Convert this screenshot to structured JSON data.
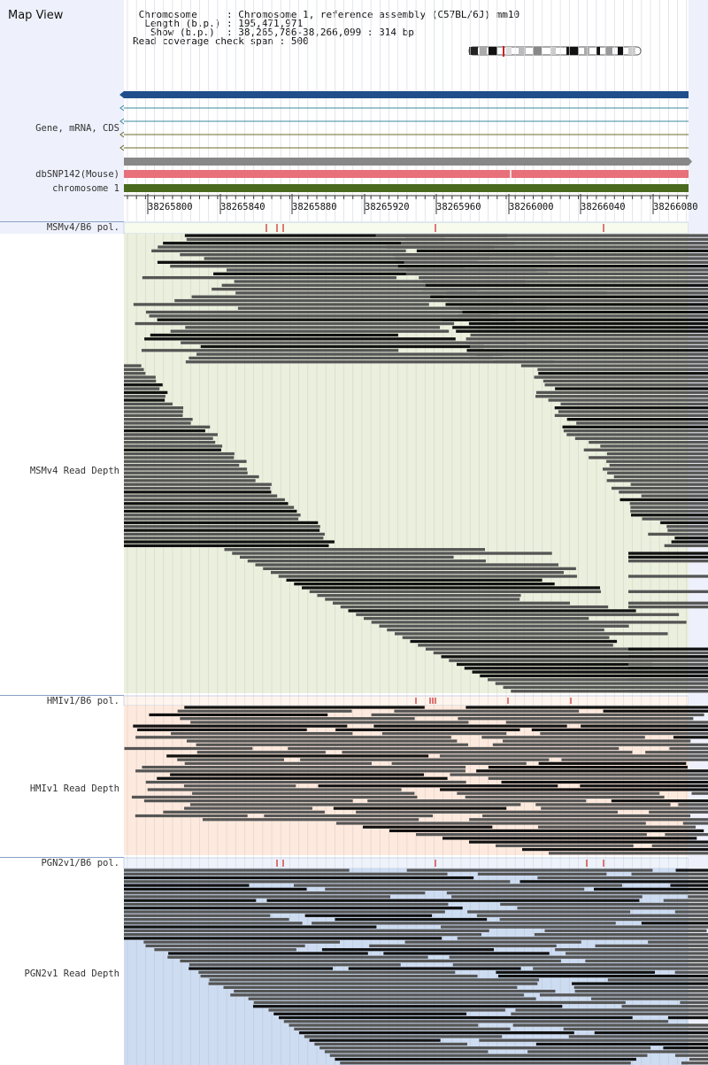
{
  "header": {
    "title": "Map View",
    "info": [
      {
        "label": " Chromosome    ",
        "value": "Chromosome 1, reference assembly (C57BL/6J) mm10"
      },
      {
        "label": "  Length (b.p.)",
        "value": "195,471,971"
      },
      {
        "label": "   Show (b.p.) ",
        "value": "38,265,786-38,266,099 : 314 bp"
      },
      {
        "label": "Read coverage check span",
        "value": "500"
      }
    ]
  },
  "tracks": {
    "gene": "Gene, mRNA, CDS",
    "dbsnp": "dbSNP142(Mouse)",
    "chromosome": "chromosome 1"
  },
  "ruler": {
    "ticks": [
      "38265800",
      "38265840",
      "38265880",
      "38265920",
      "38265960",
      "38266000",
      "38266040",
      "38266080"
    ]
  },
  "samples": [
    {
      "pol_label": "MSMv4/B6 pol.",
      "depth_label": "MSMv4 Read Depth",
      "bg": "#eaf0dd",
      "pol_bg": "#f6fbee"
    },
    {
      "pol_label": "HMIv1/B6 pol.",
      "depth_label": "HMIv1 Read Depth",
      "bg": "#fde9dd",
      "pol_bg": "#fff5ee"
    },
    {
      "pol_label": "PGN2v1/B6 pol.",
      "depth_label": "PGN2v1 Read Depth",
      "bg": "#cddcf1",
      "pol_bg": "#eef3fb"
    }
  ],
  "colors": {
    "gene_bar": "#1f4e8a",
    "snp_bar": "#e8707a",
    "chrom_bar": "#4a6a1e",
    "gray_bar": "#888888",
    "read": "#555555",
    "read_dark": "#111111",
    "polymorphism": "#cc2222"
  }
}
